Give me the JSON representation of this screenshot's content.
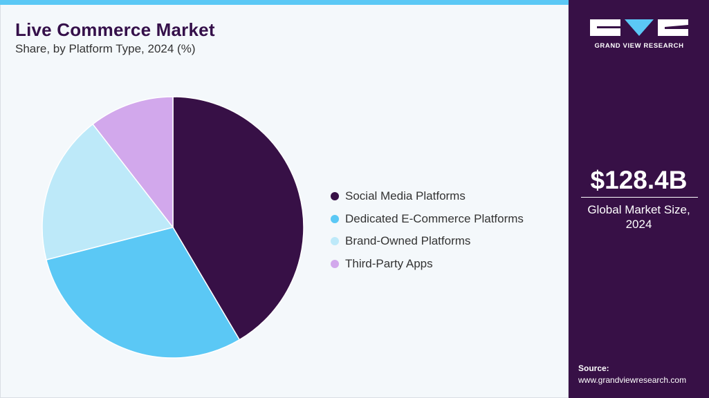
{
  "title": "Live Commerce Market",
  "subtitle": "Share, by Platform Type, 2024 (%)",
  "chart_data": {
    "type": "pie",
    "title": "Live Commerce Market",
    "subtitle": "Share, by Platform Type, 2024 (%)",
    "categories": [
      "Social Media Platforms",
      "Dedicated E-Commerce Platforms",
      "Brand-Owned Platforms",
      "Third-Party Apps"
    ],
    "values": [
      41.5,
      29.5,
      18.5,
      10.5
    ],
    "colors": [
      "#371046",
      "#5bc8f5",
      "#bde9f9",
      "#d2a8ec"
    ],
    "legend": "right"
  },
  "brand": {
    "name": "GRAND VIEW RESEARCH",
    "panel_color": "#371046",
    "accent_color": "#5bc8f5"
  },
  "market": {
    "size": "$128.4B",
    "label_line1": "Global Market Size,",
    "label_line2": "2024"
  },
  "source": {
    "label": "Source:",
    "url": "www.grandviewresearch.com"
  }
}
